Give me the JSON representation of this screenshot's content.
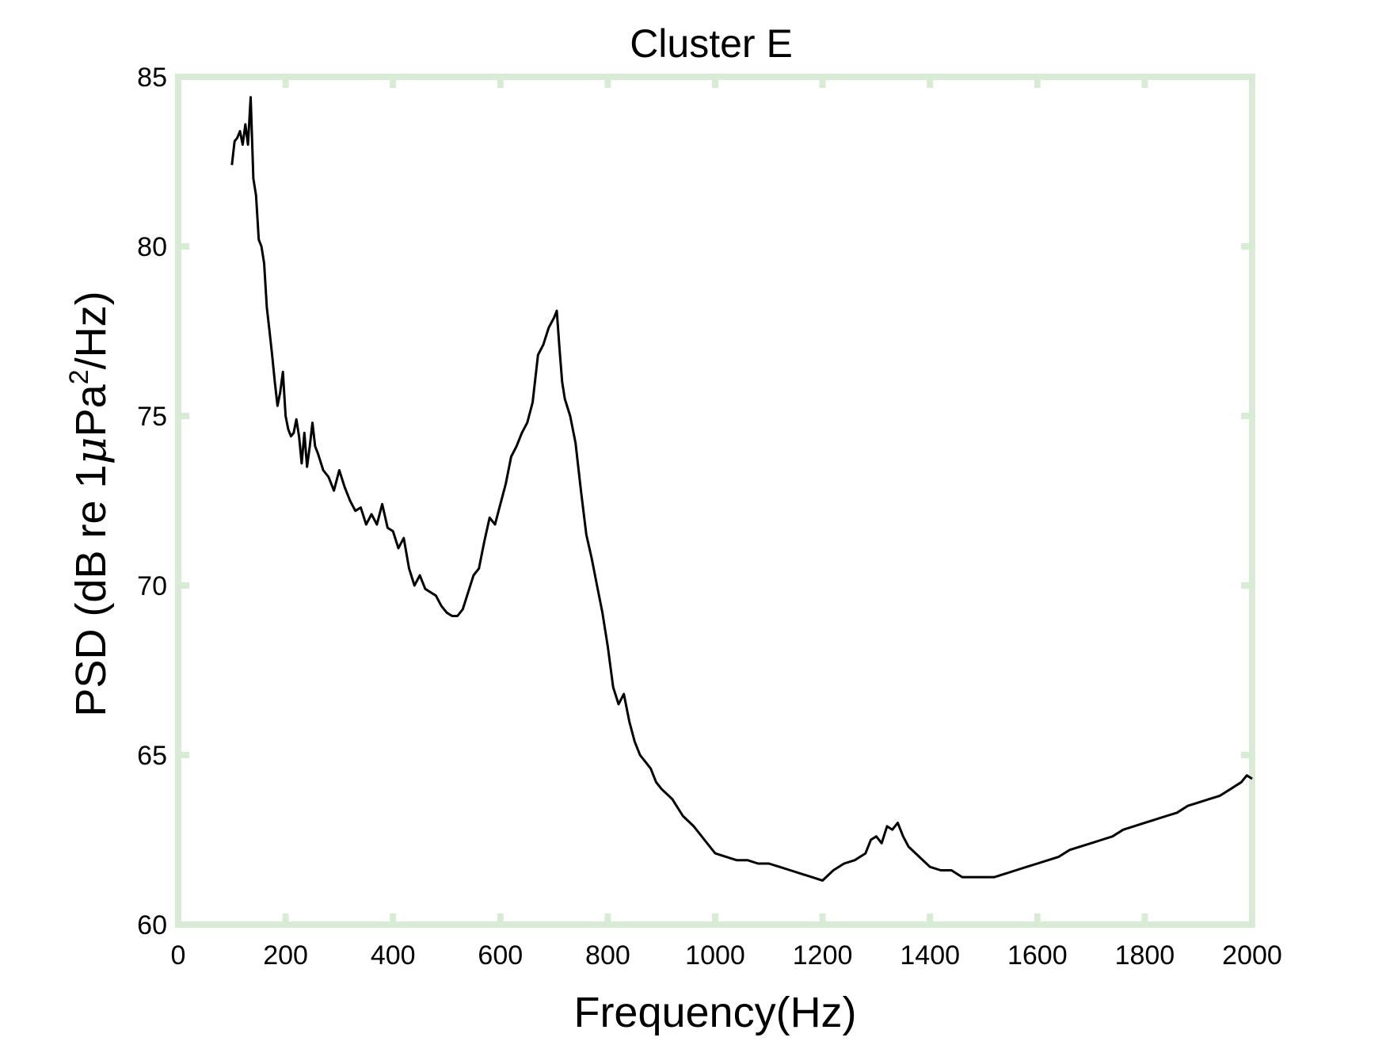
{
  "chart_data": {
    "type": "line",
    "title": "Cluster E",
    "xlabel": "Frequency(Hz)",
    "ylabel": {
      "prefix": "PSD (dB re 1",
      "mu": "μ",
      "unit": "Pa",
      "sup": "2",
      "suffix": "/Hz)"
    },
    "xlim": [
      0,
      2000
    ],
    "ylim": [
      60,
      85
    ],
    "xticks": [
      0,
      200,
      400,
      600,
      800,
      1000,
      1200,
      1400,
      1600,
      1800,
      2000
    ],
    "yticks": [
      60,
      65,
      70,
      75,
      80,
      85
    ],
    "grid": false,
    "series": [
      {
        "color": "#000000",
        "x": [
          100,
          105,
          110,
          115,
          120,
          125,
          130,
          135,
          140,
          145,
          150,
          155,
          160,
          165,
          170,
          175,
          180,
          185,
          190,
          195,
          200,
          205,
          210,
          215,
          220,
          225,
          230,
          235,
          240,
          245,
          250,
          255,
          260,
          270,
          280,
          290,
          300,
          310,
          320,
          330,
          340,
          350,
          360,
          370,
          380,
          390,
          400,
          410,
          420,
          430,
          440,
          450,
          460,
          470,
          480,
          490,
          500,
          510,
          520,
          530,
          540,
          550,
          560,
          570,
          580,
          590,
          600,
          610,
          620,
          630,
          640,
          650,
          660,
          670,
          680,
          690,
          700,
          705,
          710,
          715,
          720,
          730,
          740,
          750,
          760,
          770,
          780,
          790,
          800,
          810,
          820,
          830,
          840,
          850,
          860,
          870,
          880,
          890,
          900,
          920,
          940,
          960,
          980,
          1000,
          1020,
          1040,
          1060,
          1080,
          1100,
          1120,
          1140,
          1160,
          1180,
          1200,
          1220,
          1240,
          1260,
          1280,
          1290,
          1300,
          1310,
          1320,
          1330,
          1340,
          1350,
          1360,
          1380,
          1400,
          1420,
          1440,
          1460,
          1480,
          1500,
          1520,
          1540,
          1560,
          1580,
          1600,
          1620,
          1640,
          1660,
          1680,
          1700,
          1720,
          1740,
          1760,
          1780,
          1800,
          1820,
          1840,
          1860,
          1880,
          1900,
          1920,
          1940,
          1960,
          1980,
          1990,
          2000
        ],
        "y": [
          82.4,
          83.1,
          83.2,
          83.4,
          83.0,
          83.6,
          83.0,
          84.4,
          82.0,
          81.5,
          80.2,
          80.0,
          79.5,
          78.2,
          77.5,
          76.8,
          76.0,
          75.3,
          75.7,
          76.3,
          75.0,
          74.6,
          74.4,
          74.5,
          74.9,
          74.4,
          73.6,
          74.5,
          73.5,
          74.1,
          74.8,
          74.1,
          73.9,
          73.4,
          73.2,
          72.8,
          73.4,
          72.9,
          72.5,
          72.2,
          72.3,
          71.8,
          72.1,
          71.8,
          72.4,
          71.7,
          71.6,
          71.1,
          71.4,
          70.5,
          70.0,
          70.3,
          69.9,
          69.8,
          69.7,
          69.4,
          69.2,
          69.1,
          69.1,
          69.3,
          69.8,
          70.3,
          70.5,
          71.3,
          72.0,
          71.8,
          72.4,
          73.0,
          73.8,
          74.1,
          74.5,
          74.8,
          75.4,
          76.8,
          77.1,
          77.6,
          77.9,
          78.1,
          77.0,
          76.0,
          75.5,
          75.0,
          74.2,
          72.8,
          71.5,
          70.8,
          70.0,
          69.2,
          68.2,
          67.0,
          66.5,
          66.8,
          66.0,
          65.4,
          65.0,
          64.8,
          64.6,
          64.2,
          64.0,
          63.7,
          63.2,
          62.9,
          62.5,
          62.1,
          62.0,
          61.9,
          61.9,
          61.8,
          61.8,
          61.7,
          61.6,
          61.5,
          61.4,
          61.3,
          61.6,
          61.8,
          61.9,
          62.1,
          62.5,
          62.6,
          62.4,
          62.9,
          62.8,
          63.0,
          62.6,
          62.3,
          62.0,
          61.7,
          61.6,
          61.6,
          61.4,
          61.4,
          61.4,
          61.4,
          61.5,
          61.6,
          61.7,
          61.8,
          61.9,
          62.0,
          62.2,
          62.3,
          62.4,
          62.5,
          62.6,
          62.8,
          62.9,
          63.0,
          63.1,
          63.2,
          63.3,
          63.5,
          63.6,
          63.7,
          63.8,
          64.0,
          64.2,
          64.4,
          64.3
        ]
      }
    ]
  }
}
